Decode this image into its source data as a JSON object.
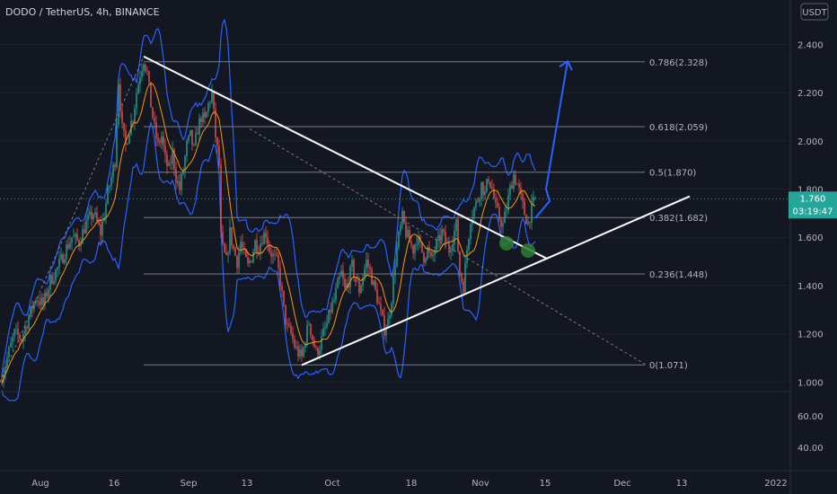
{
  "header": {
    "title": "DODO / TetherUS, 4h, BINANCE"
  },
  "currency_label": "USDT",
  "price_badge": {
    "value": "1.760",
    "countdown": "03:19:47"
  },
  "colors": {
    "background": "#131722",
    "up": "#26a69a",
    "down": "#ef5350",
    "bands": "#2962ff",
    "ma": "#ff9800",
    "price_line": "#26a69a",
    "trendline": "#ffffff",
    "fib": "#787b86",
    "arrow": "#2962ff",
    "highlight": "#2e7d32"
  },
  "chart_data": {
    "type": "candlestick",
    "symbol": "DODO / TetherUS",
    "interval": "4h",
    "exchange": "BINANCE",
    "price_axis": {
      "ticks": [
        "2.400",
        "2.200",
        "2.000",
        "1.800",
        "1.600",
        "1.400",
        "1.200",
        "1.000"
      ],
      "ylim": [
        0.96,
        2.48
      ]
    },
    "indicator_axis": {
      "ticks": [
        "60.00",
        "40.00"
      ]
    },
    "time_axis": {
      "ticks": [
        "Aug",
        "16",
        "Sep",
        "13",
        "Oct",
        "18",
        "Nov",
        "15",
        "Dec",
        "13",
        "2022"
      ]
    },
    "last_price": 1.76,
    "fibonacci": [
      {
        "label": "0.786(2.328)",
        "level": 0.786,
        "price": 2.328
      },
      {
        "label": "0.618(2.059)",
        "level": 0.618,
        "price": 2.059
      },
      {
        "label": "0.5(1.870)",
        "level": 0.5,
        "price": 1.87
      },
      {
        "label": "0.382(1.682)",
        "level": 0.382,
        "price": 1.682
      },
      {
        "label": "0.236(1.448)",
        "level": 0.236,
        "price": 1.448
      },
      {
        "label": "0(1.071)",
        "level": 0,
        "price": 1.071
      }
    ],
    "ohlc_path": [
      [
        0,
        1.0
      ],
      [
        8,
        1.1
      ],
      [
        16,
        1.2
      ],
      [
        24,
        1.18
      ],
      [
        32,
        1.27
      ],
      [
        40,
        1.35
      ],
      [
        48,
        1.32
      ],
      [
        56,
        1.42
      ],
      [
        64,
        1.47
      ],
      [
        72,
        1.54
      ],
      [
        80,
        1.6
      ],
      [
        88,
        1.58
      ],
      [
        96,
        1.66
      ],
      [
        104,
        1.7
      ],
      [
        112,
        1.62
      ],
      [
        120,
        1.78
      ],
      [
        128,
        1.92
      ],
      [
        132,
        2.25
      ],
      [
        136,
        2.05
      ],
      [
        140,
        1.98
      ],
      [
        144,
        2.05
      ],
      [
        148,
        2.1
      ],
      [
        152,
        2.2
      ],
      [
        156,
        2.28
      ],
      [
        160,
        2.34
      ],
      [
        164,
        2.28
      ],
      [
        168,
        2.15
      ],
      [
        172,
        2.05
      ],
      [
        176,
        1.98
      ],
      [
        180,
        2.02
      ],
      [
        184,
        1.92
      ],
      [
        188,
        1.88
      ],
      [
        192,
        1.95
      ],
      [
        196,
        1.85
      ],
      [
        200,
        1.8
      ],
      [
        204,
        1.88
      ],
      [
        208,
        1.98
      ],
      [
        212,
        2.02
      ],
      [
        216,
        1.96
      ],
      [
        220,
        2.05
      ],
      [
        224,
        2.1
      ],
      [
        228,
        2.08
      ],
      [
        232,
        2.15
      ],
      [
        236,
        2.2
      ],
      [
        240,
        2.02
      ],
      [
        244,
        1.9
      ],
      [
        246,
        1.6
      ],
      [
        248,
        1.55
      ],
      [
        252,
        1.5
      ],
      [
        256,
        1.62
      ],
      [
        260,
        1.55
      ],
      [
        264,
        1.5
      ],
      [
        268,
        1.58
      ],
      [
        272,
        1.52
      ],
      [
        276,
        1.48
      ],
      [
        280,
        1.52
      ],
      [
        284,
        1.58
      ],
      [
        288,
        1.56
      ],
      [
        292,
        1.6
      ],
      [
        296,
        1.62
      ],
      [
        300,
        1.55
      ],
      [
        304,
        1.52
      ],
      [
        308,
        1.5
      ],
      [
        312,
        1.42
      ],
      [
        316,
        1.3
      ],
      [
        320,
        1.22
      ],
      [
        324,
        1.2
      ],
      [
        328,
        1.15
      ],
      [
        332,
        1.12
      ],
      [
        336,
        1.1
      ],
      [
        340,
        1.18
      ],
      [
        344,
        1.25
      ],
      [
        348,
        1.18
      ],
      [
        352,
        1.12
      ],
      [
        356,
        1.15
      ],
      [
        360,
        1.2
      ],
      [
        364,
        1.24
      ],
      [
        368,
        1.3
      ],
      [
        372,
        1.34
      ],
      [
        376,
        1.4
      ],
      [
        380,
        1.45
      ],
      [
        384,
        1.38
      ],
      [
        388,
        1.42
      ],
      [
        392,
        1.48
      ],
      [
        396,
        1.42
      ],
      [
        400,
        1.38
      ],
      [
        404,
        1.44
      ],
      [
        408,
        1.5
      ],
      [
        412,
        1.46
      ],
      [
        416,
        1.4
      ],
      [
        420,
        1.35
      ],
      [
        424,
        1.28
      ],
      [
        428,
        1.22
      ],
      [
        432,
        1.25
      ],
      [
        436,
        1.35
      ],
      [
        440,
        1.5
      ],
      [
        444,
        1.6
      ],
      [
        448,
        1.68
      ],
      [
        452,
        1.62
      ],
      [
        456,
        1.58
      ],
      [
        460,
        1.55
      ],
      [
        464,
        1.6
      ],
      [
        468,
        1.56
      ],
      [
        472,
        1.52
      ],
      [
        476,
        1.55
      ],
      [
        480,
        1.5
      ],
      [
        484,
        1.55
      ],
      [
        488,
        1.58
      ],
      [
        492,
        1.62
      ],
      [
        496,
        1.58
      ],
      [
        500,
        1.55
      ],
      [
        504,
        1.6
      ],
      [
        508,
        1.65
      ],
      [
        512,
        1.45
      ],
      [
        516,
        1.4
      ],
      [
        520,
        1.55
      ],
      [
        524,
        1.68
      ],
      [
        528,
        1.72
      ],
      [
        532,
        1.76
      ],
      [
        536,
        1.82
      ],
      [
        540,
        1.78
      ],
      [
        544,
        1.85
      ],
      [
        548,
        1.8
      ],
      [
        552,
        1.72
      ],
      [
        556,
        1.68
      ],
      [
        560,
        1.65
      ],
      [
        564,
        1.72
      ],
      [
        568,
        1.8
      ],
      [
        572,
        1.86
      ],
      [
        576,
        1.82
      ],
      [
        580,
        1.76
      ],
      [
        584,
        1.7
      ],
      [
        588,
        1.66
      ],
      [
        592,
        1.72
      ],
      [
        596,
        1.76
      ]
    ],
    "annotations": {
      "upper_trendline": [
        [
          160,
          2.35
        ],
        [
          610,
          1.51
        ]
      ],
      "lower_trendline": [
        [
          336,
          1.07
        ],
        [
          768,
          1.77
        ]
      ],
      "dashed_upper": [
        [
          278,
          2.05
        ],
        [
          720,
          1.07
        ]
      ],
      "dashed_left": [
        [
          0,
          1.0
        ],
        [
          160,
          2.35
        ]
      ],
      "projection_arrow": [
        [
          596,
          1.68
        ],
        [
          612,
          1.75
        ],
        [
          608,
          1.8
        ],
        [
          632,
          2.33
        ]
      ],
      "support_circles": [
        [
          564,
          1.575
        ],
        [
          588,
          1.545
        ]
      ]
    }
  }
}
